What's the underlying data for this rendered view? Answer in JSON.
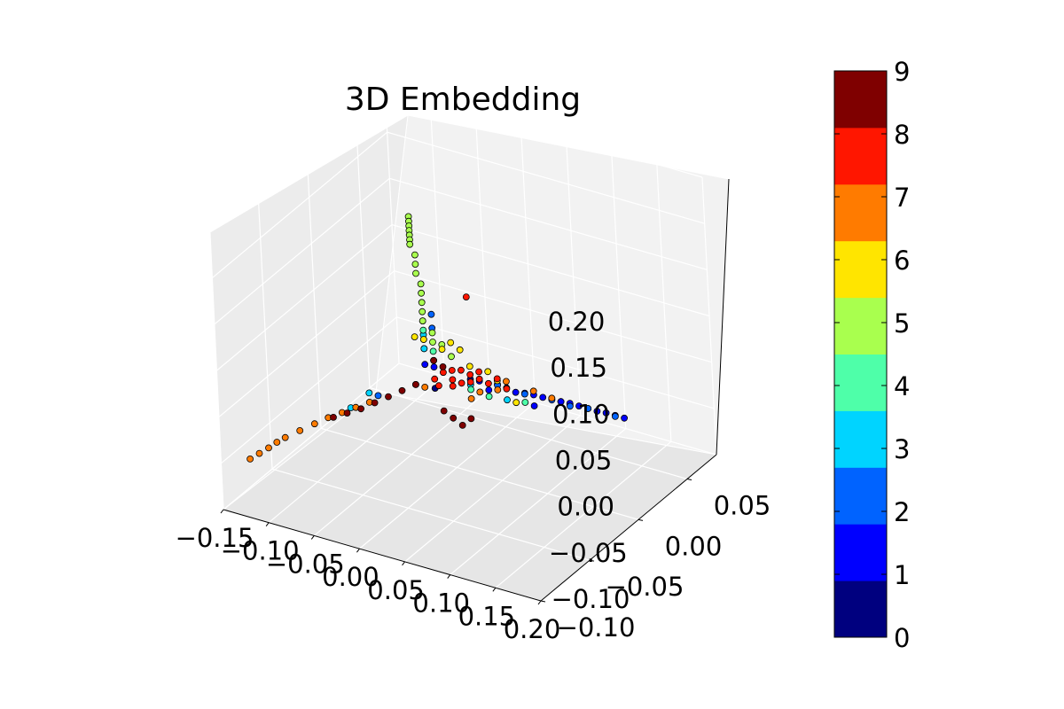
{
  "chart_data": {
    "type": "scatter",
    "projection": "3d",
    "title": "3D Embedding",
    "x_ticks": [
      "−0.15",
      "−0.10",
      "−0.05",
      "0.00",
      "0.05",
      "0.10",
      "0.15",
      "0.20"
    ],
    "y_ticks": [
      "−0.10",
      "−0.05",
      "0.00",
      "0.05"
    ],
    "z_ticks": [
      "−0.10",
      "−0.05",
      "0.00",
      "0.05",
      "0.10",
      "0.15",
      "0.20"
    ],
    "xlim": [
      -0.15,
      0.2
    ],
    "ylim": [
      -0.1,
      0.08
    ],
    "zlim": [
      -0.1,
      0.2
    ],
    "grid": true,
    "colorbar": {
      "ticks": [
        "0",
        "1",
        "2",
        "3",
        "4",
        "5",
        "6",
        "7",
        "8",
        "9"
      ],
      "range": [
        0,
        9
      ],
      "colors": [
        "#00007f",
        "#0000ff",
        "#0063ff",
        "#00d4ff",
        "#4effa9",
        "#a9ff4e",
        "#ffe500",
        "#ff7b00",
        "#ff1600",
        "#7f0000"
      ]
    },
    "series": [
      {
        "label": 0,
        "color": "#00007f",
        "points": [
          [
            0.12,
            0.0,
            0.005
          ],
          [
            0.13,
            0.0,
            0.005
          ],
          [
            0.05,
            0.0,
            0.004
          ],
          [
            -0.02,
            0.0,
            -0.02
          ],
          [
            0.02,
            0.0,
            0.001
          ],
          [
            -0.03,
            0.0,
            0.02
          ]
        ]
      },
      {
        "label": 1,
        "color": "#0000ff",
        "points": [
          [
            0.08,
            0.0,
            0.003
          ],
          [
            0.09,
            0.0,
            0.004
          ],
          [
            0.1,
            0.0,
            0.004
          ],
          [
            0.11,
            0.0,
            0.005
          ],
          [
            0.12,
            0.0,
            0.005
          ],
          [
            0.13,
            0.0,
            0.006
          ],
          [
            0.14,
            0.0,
            0.006
          ],
          [
            0.15,
            0.0,
            0.006
          ],
          [
            0.16,
            0.0,
            0.006
          ],
          [
            0.17,
            0.0,
            0.007
          ],
          [
            0.18,
            0.0,
            0.007
          ],
          [
            0.19,
            0.0,
            0.007
          ],
          [
            -0.03,
            0.0,
            0.003
          ],
          [
            -0.02,
            0.0,
            0.003
          ],
          [
            0.06,
            0.0,
            0.003
          ],
          [
            0.03,
            0.0,
            0.002
          ],
          [
            0.07,
            0.0,
            0.001
          ],
          [
            0.09,
            0.0,
            -0.008
          ],
          [
            0.04,
            0.0,
            -0.005
          ]
        ]
      },
      {
        "label": 2,
        "color": "#0063ff",
        "points": [
          [
            0.11,
            0.0,
            0.004
          ],
          [
            0.15,
            0.0,
            0.006
          ],
          [
            0.18,
            0.0,
            0.006
          ],
          [
            0.13,
            0.0,
            0.003
          ],
          [
            0.05,
            0.0,
            0.003
          ],
          [
            0.08,
            0.0,
            0.002
          ],
          [
            -0.02,
            0.0,
            0.06
          ],
          [
            -0.02,
            0.0,
            0.045
          ],
          [
            -0.05,
            -0.03,
            -0.01
          ]
        ]
      },
      {
        "label": 3,
        "color": "#00d4ff",
        "points": [
          [
            -0.03,
            0.0,
            0.03
          ],
          [
            -0.03,
            0.0,
            0.035
          ],
          [
            -0.03,
            0.0,
            0.02
          ],
          [
            -0.02,
            0.0,
            0.01
          ],
          [
            -0.06,
            -0.03,
            -0.01
          ],
          [
            -0.07,
            -0.04,
            -0.02
          ],
          [
            0.06,
            0.0,
            -0.01
          ],
          [
            0.02,
            0.0,
            -0.005
          ]
        ]
      },
      {
        "label": 4,
        "color": "#4effa9",
        "points": [
          [
            -0.03,
            0.0,
            0.04
          ],
          [
            -0.03,
            0.0,
            0.05
          ],
          [
            -0.02,
            0.0,
            0.02
          ],
          [
            0.02,
            0.0,
            -0.01
          ],
          [
            0.08,
            0.0,
            -0.007
          ],
          [
            0.04,
            0.0,
            -0.012
          ]
        ]
      },
      {
        "label": 5,
        "color": "#a9ff4e",
        "points": [
          [
            -0.04,
            0.0,
            0.16
          ],
          [
            -0.04,
            0.0,
            0.155
          ],
          [
            -0.04,
            0.0,
            0.15
          ],
          [
            -0.04,
            0.0,
            0.145
          ],
          [
            -0.04,
            0.0,
            0.14
          ],
          [
            -0.04,
            0.0,
            0.135
          ],
          [
            -0.04,
            0.0,
            0.13
          ],
          [
            -0.035,
            0.0,
            0.12
          ],
          [
            -0.035,
            0.0,
            0.11
          ],
          [
            -0.035,
            0.0,
            0.1
          ],
          [
            -0.03,
            0.0,
            0.09
          ],
          [
            -0.03,
            0.0,
            0.08
          ],
          [
            -0.03,
            0.0,
            0.07
          ],
          [
            -0.03,
            0.0,
            0.06
          ],
          [
            -0.03,
            0.0,
            0.05
          ],
          [
            -0.02,
            0.0,
            0.04
          ],
          [
            -0.02,
            0.0,
            0.03
          ],
          [
            -0.01,
            0.0,
            0.03
          ],
          [
            0.0,
            0.0,
            0.02
          ]
        ]
      },
      {
        "label": 6,
        "color": "#ffe500",
        "points": [
          [
            0.0,
            0.0,
            0.035
          ],
          [
            0.01,
            0.0,
            0.03
          ],
          [
            0.02,
            0.0,
            0.015
          ],
          [
            0.04,
            0.0,
            0.015
          ],
          [
            0.05,
            0.0,
            0.008
          ],
          [
            0.07,
            0.0,
            -0.01
          ],
          [
            -0.03,
            0.0,
            0.03
          ],
          [
            -0.04,
            0.0,
            0.03
          ],
          [
            -0.01,
            0.0,
            0.025
          ]
        ]
      },
      {
        "label": 7,
        "color": "#ff7b00",
        "points": [
          [
            -0.14,
            -0.08,
            -0.06
          ],
          [
            -0.135,
            -0.075,
            -0.057
          ],
          [
            -0.13,
            -0.07,
            -0.054
          ],
          [
            -0.125,
            -0.066,
            -0.05
          ],
          [
            -0.12,
            -0.062,
            -0.047
          ],
          [
            -0.11,
            -0.056,
            -0.042
          ],
          [
            -0.1,
            -0.05,
            -0.037
          ],
          [
            -0.09,
            -0.045,
            -0.032
          ],
          [
            -0.08,
            -0.04,
            -0.028
          ],
          [
            -0.07,
            -0.035,
            -0.024
          ],
          [
            -0.06,
            -0.03,
            -0.02
          ],
          [
            0.06,
            0.0,
            0.01
          ],
          [
            0.09,
            0.0,
            0.008
          ],
          [
            0.11,
            0.0,
            0.006
          ],
          [
            0.05,
            0.0,
            -0.002
          ],
          [
            0.03,
            0.0,
            -0.01
          ],
          [
            0.02,
            0.0,
            -0.02
          ],
          [
            -0.02,
            -0.01,
            -0.01
          ]
        ]
      },
      {
        "label": 8,
        "color": "#ff1600",
        "points": [
          [
            0.0,
            0.0,
            0.005
          ],
          [
            0.01,
            0.0,
            0.008
          ],
          [
            0.02,
            0.0,
            0.006
          ],
          [
            0.03,
            0.0,
            0.004
          ],
          [
            0.04,
            0.0,
            0.002
          ],
          [
            0.0,
            0.0,
            -0.005
          ],
          [
            0.01,
            0.0,
            -0.006
          ],
          [
            0.02,
            0.0,
            -0.002
          ],
          [
            -0.01,
            0.0,
            0.0
          ],
          [
            -0.02,
            0.0,
            -0.01
          ],
          [
            -0.03,
            -0.01,
            -0.01
          ],
          [
            0.03,
            0.0,
            0.012
          ],
          [
            0.05,
            0.0,
            0.01
          ],
          [
            0.06,
            0.0,
            0.002
          ],
          [
            0.02,
            0.0,
            0.09
          ],
          [
            0.0,
            0.0,
            -0.012
          ],
          [
            -0.01,
            -0.005,
            -0.01
          ]
        ]
      },
      {
        "label": 9,
        "color": "#7f0000",
        "points": [
          [
            -0.05,
            -0.02,
            -0.02
          ],
          [
            -0.06,
            -0.025,
            -0.025
          ],
          [
            -0.07,
            -0.03,
            -0.03
          ],
          [
            -0.08,
            -0.035,
            -0.033
          ],
          [
            -0.09,
            -0.04,
            -0.036
          ],
          [
            -0.04,
            -0.015,
            -0.015
          ],
          [
            -0.03,
            -0.01,
            -0.01
          ],
          [
            0.0,
            -0.01,
            -0.03
          ],
          [
            0.01,
            -0.01,
            -0.035
          ],
          [
            0.02,
            -0.01,
            -0.04
          ],
          [
            0.03,
            -0.01,
            -0.03
          ],
          [
            -0.01,
            0.0,
            0.006
          ],
          [
            -0.02,
            0.0,
            0.01
          ]
        ]
      }
    ]
  }
}
